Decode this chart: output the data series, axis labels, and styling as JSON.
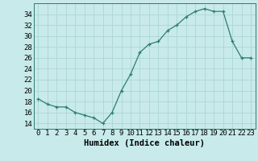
{
  "x": [
    0,
    1,
    2,
    3,
    4,
    5,
    6,
    7,
    8,
    9,
    10,
    11,
    12,
    13,
    14,
    15,
    16,
    17,
    18,
    19,
    20,
    21,
    22,
    23
  ],
  "y": [
    18.5,
    17.5,
    17.0,
    17.0,
    16.0,
    15.5,
    15.0,
    14.0,
    16.0,
    20.0,
    23.0,
    27.0,
    28.5,
    29.0,
    31.0,
    32.0,
    33.5,
    34.5,
    35.0,
    34.5,
    34.5,
    29.0,
    26.0,
    26.0
  ],
  "xlabel": "Humidex (Indice chaleur)",
  "xlim": [
    -0.5,
    23.5
  ],
  "ylim": [
    13,
    36
  ],
  "yticks": [
    14,
    16,
    18,
    20,
    22,
    24,
    26,
    28,
    30,
    32,
    34
  ],
  "xtick_labels": [
    "0",
    "1",
    "2",
    "3",
    "4",
    "5",
    "6",
    "7",
    "8",
    "9",
    "10",
    "11",
    "12",
    "13",
    "14",
    "15",
    "16",
    "17",
    "18",
    "19",
    "20",
    "21",
    "22",
    "23"
  ],
  "line_color": "#2e7d6e",
  "marker": "+",
  "bg_color": "#c8eaea",
  "grid_color": "#b0d8d8",
  "label_fontsize": 7.5,
  "tick_fontsize": 6.5
}
